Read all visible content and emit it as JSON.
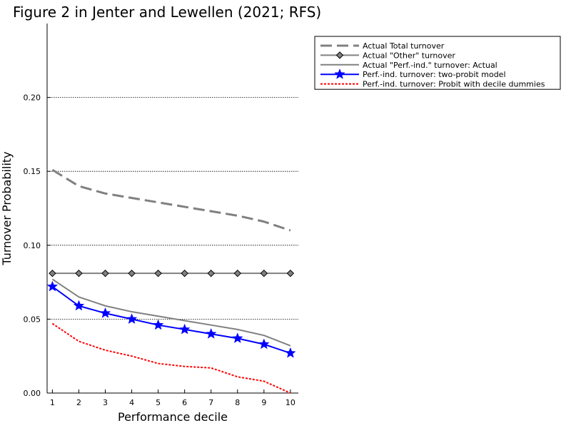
{
  "chart_data": {
    "type": "line",
    "title": "Figure 2 in Jenter and Lewellen (2021; RFS)",
    "xlabel": "Performance decile",
    "ylabel": "Turnover Probability",
    "x": [
      1,
      2,
      3,
      4,
      5,
      6,
      7,
      8,
      9,
      10
    ],
    "x_ticks": [
      "1",
      "2",
      "3",
      "4",
      "5",
      "6",
      "7",
      "8",
      "9",
      "10"
    ],
    "y_ticks": [
      "0.00",
      "0.05",
      "0.10",
      "0.15",
      "0.20"
    ],
    "xlim": [
      0.8,
      10.3
    ],
    "ylim": [
      0,
      0.25
    ],
    "grid": "horizontal dotted",
    "legend_position": "top-right, outside plot",
    "series": [
      {
        "name": "Actual Total turnover",
        "values": [
          0.151,
          0.14,
          0.135,
          0.132,
          0.129,
          0.126,
          0.123,
          0.12,
          0.116,
          0.11
        ],
        "color": "#808080",
        "style": "dashed",
        "marker": "none"
      },
      {
        "name": "Actual \"Other\" turnover",
        "values": [
          0.081,
          0.081,
          0.081,
          0.081,
          0.081,
          0.081,
          0.081,
          0.081,
          0.081,
          0.081
        ],
        "color": "#808080",
        "style": "solid",
        "marker": "diamond"
      },
      {
        "name": "Actual \"Perf.-ind.\" turnover: Actual",
        "values": [
          0.077,
          0.065,
          0.059,
          0.055,
          0.052,
          0.049,
          0.046,
          0.043,
          0.039,
          0.032
        ],
        "color": "#808080",
        "style": "solid",
        "marker": "none"
      },
      {
        "name": "Perf.-ind. turnover: two-probit model",
        "values": [
          0.072,
          0.059,
          0.054,
          0.05,
          0.046,
          0.043,
          0.04,
          0.037,
          0.033,
          0.027
        ],
        "color": "#0000ff",
        "style": "solid",
        "marker": "star"
      },
      {
        "name": "Perf.-ind. turnover: Probit with decile dummies",
        "values": [
          0.047,
          0.035,
          0.029,
          0.025,
          0.02,
          0.018,
          0.017,
          0.011,
          0.008,
          0.0
        ],
        "color": "#ff0000",
        "style": "dotted",
        "marker": "none"
      }
    ]
  }
}
